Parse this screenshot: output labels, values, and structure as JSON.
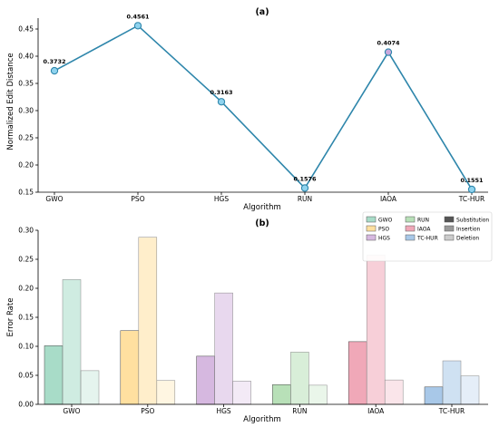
{
  "chart_data": [
    {
      "type": "line",
      "title": "(a)",
      "xlabel": "Algorithm",
      "ylabel": "Normalized Edit Distance",
      "categories": [
        "GWO",
        "PSO",
        "HGS",
        "RUN",
        "IAOA",
        "TC-HUR"
      ],
      "values": [
        0.3732,
        0.4561,
        0.3163,
        0.1576,
        0.4074,
        0.1551
      ],
      "value_labels": [
        "0.3732",
        "0.4561",
        "0.3163",
        "0.1576",
        "0.4074",
        "0.1551"
      ],
      "ylim": [
        0.15,
        0.47
      ],
      "yticks": [
        0.15,
        0.2,
        0.25,
        0.3,
        0.35,
        0.4,
        0.45
      ],
      "ytick_labels": [
        "0.15",
        "0.20",
        "0.25",
        "0.30",
        "0.35",
        "0.40",
        "0.45"
      ],
      "line_color": "#2e86ab",
      "marker_colors": [
        "#8fd3ee",
        "#8fd3ee",
        "#8fd3ee",
        "#8fd3ee",
        "#c9a8dc",
        "#8fd3ee"
      ],
      "grid": false
    },
    {
      "type": "bar",
      "title": "(b)",
      "xlabel": "Algorithm",
      "ylabel": "Error Rate",
      "categories": [
        "GWO",
        "PSO",
        "HGS",
        "RUN",
        "IAOA",
        "TC-HUR"
      ],
      "series": [
        {
          "name": "Substitution",
          "values": [
            0.101,
            0.127,
            0.083,
            0.034,
            0.108,
            0.03
          ]
        },
        {
          "name": "Insertion",
          "values": [
            0.215,
            0.288,
            0.192,
            0.09,
            0.257,
            0.075
          ]
        },
        {
          "name": "Deletion",
          "values": [
            0.058,
            0.041,
            0.04,
            0.033,
            0.042,
            0.049
          ]
        }
      ],
      "ylim": [
        0,
        0.3
      ],
      "yticks": [
        0,
        0.05,
        0.1,
        0.15,
        0.2,
        0.25,
        0.3
      ],
      "ytick_labels": [
        "0.00",
        "0.05",
        "0.10",
        "0.15",
        "0.20",
        "0.25",
        "0.30"
      ],
      "algorithm_colors": [
        "#a8dcc8",
        "#ffe0a0",
        "#d6b8e0",
        "#b8e0b8",
        "#f0a8b8",
        "#a8c8e8"
      ],
      "series_opacity": [
        1.0,
        0.55,
        0.3
      ],
      "grid": false,
      "legend": {
        "placement": "top-right",
        "algorithm_entries": [
          "GWO",
          "PSO",
          "HGS",
          "RUN",
          "IAOA",
          "TC-HUR"
        ],
        "error_type_entries": [
          "Substitution",
          "Insertion",
          "Deletion"
        ],
        "error_type_colors": [
          "#555555",
          "#999999",
          "#cccccc"
        ]
      }
    }
  ]
}
